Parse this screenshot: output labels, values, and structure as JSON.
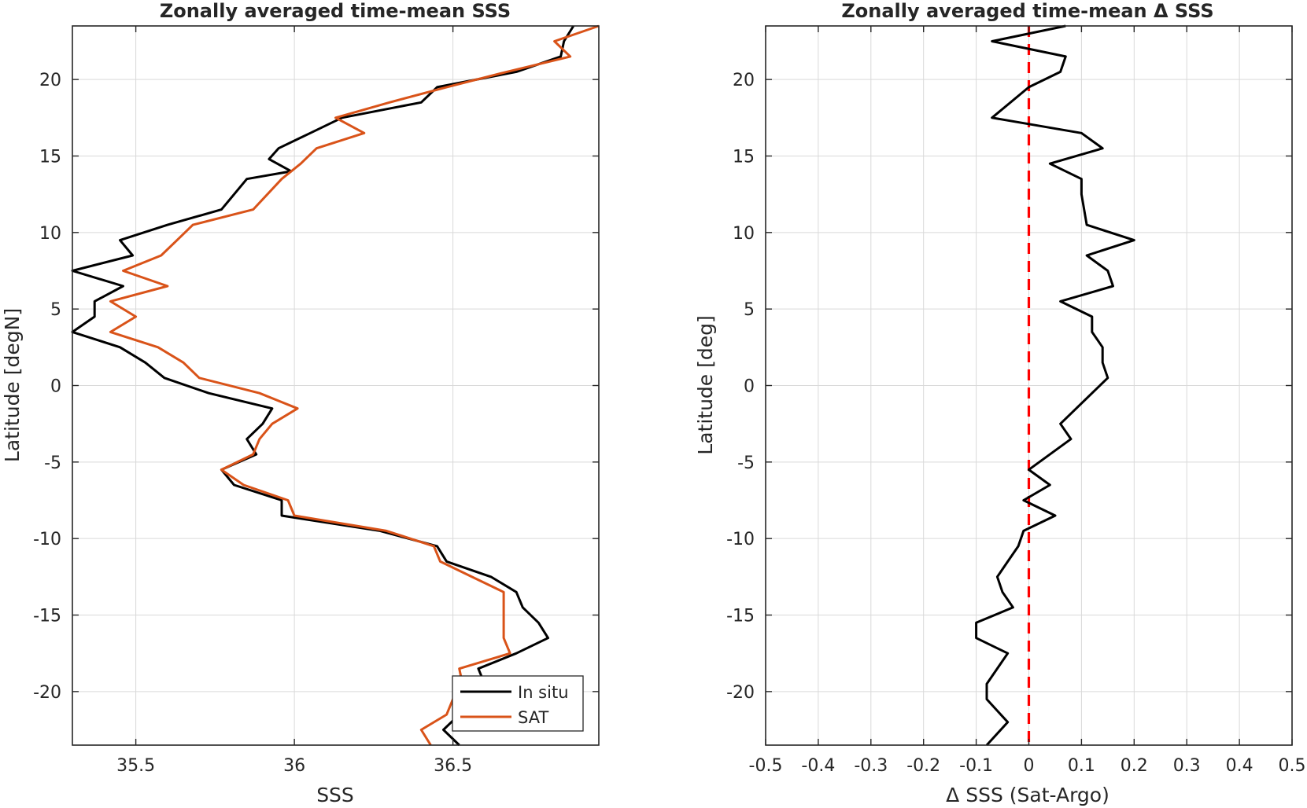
{
  "chart_data": [
    {
      "type": "line",
      "title": "Zonally averaged time-mean SSS",
      "xlabel": "SSS",
      "ylabel": "Latitude [degN]",
      "xlim": [
        35.3,
        36.96
      ],
      "ylim": [
        -23.5,
        23.5
      ],
      "xticks": [
        35.5,
        36,
        36.5
      ],
      "xtick_labels": [
        "35.5",
        "36",
        "36.5"
      ],
      "yticks": [
        20,
        15,
        10,
        5,
        0,
        -5,
        -10,
        -15,
        -20
      ],
      "ytick_labels": [
        "20",
        "15",
        "10",
        "5",
        "0",
        "-5",
        "-10",
        "-15",
        "-20"
      ],
      "grid": true,
      "legend_position": "bottom-right",
      "series": [
        {
          "name": "In situ",
          "color": "#000000",
          "points": [
            [
              36.88,
              23.5
            ],
            [
              36.85,
              22.5
            ],
            [
              36.84,
              21.5
            ],
            [
              36.7,
              20.5
            ],
            [
              36.45,
              19.5
            ],
            [
              36.4,
              18.5
            ],
            [
              36.15,
              17.5
            ],
            [
              36.05,
              16.5
            ],
            [
              35.95,
              15.5
            ],
            [
              35.92,
              14.8
            ],
            [
              35.99,
              14.0
            ],
            [
              35.85,
              13.5
            ],
            [
              35.77,
              11.5
            ],
            [
              35.6,
              10.5
            ],
            [
              35.45,
              9.5
            ],
            [
              35.49,
              8.5
            ],
            [
              35.3,
              7.5
            ],
            [
              35.46,
              6.5
            ],
            [
              35.37,
              5.5
            ],
            [
              35.37,
              4.5
            ],
            [
              35.3,
              3.5
            ],
            [
              35.45,
              2.5
            ],
            [
              35.53,
              1.5
            ],
            [
              35.59,
              0.5
            ],
            [
              35.73,
              -0.5
            ],
            [
              35.93,
              -1.5
            ],
            [
              35.9,
              -2.5
            ],
            [
              35.85,
              -3.5
            ],
            [
              35.88,
              -4.5
            ],
            [
              35.77,
              -5.5
            ],
            [
              35.81,
              -6.5
            ],
            [
              35.96,
              -7.5
            ],
            [
              35.96,
              -8.5
            ],
            [
              36.27,
              -9.5
            ],
            [
              36.45,
              -10.5
            ],
            [
              36.48,
              -11.5
            ],
            [
              36.62,
              -12.5
            ],
            [
              36.7,
              -13.5
            ],
            [
              36.72,
              -14.5
            ],
            [
              36.77,
              -15.5
            ],
            [
              36.8,
              -16.5
            ],
            [
              36.7,
              -17.5
            ],
            [
              36.58,
              -18.5
            ],
            [
              36.6,
              -19.5
            ],
            [
              36.58,
              -20.5
            ],
            [
              36.52,
              -21.5
            ],
            [
              36.47,
              -22.5
            ],
            [
              36.52,
              -23.5
            ]
          ]
        },
        {
          "name": "SAT",
          "color": "#D95319",
          "points": [
            [
              36.96,
              23.5
            ],
            [
              36.82,
              22.5
            ],
            [
              36.87,
              21.5
            ],
            [
              36.67,
              20.5
            ],
            [
              36.48,
              19.5
            ],
            [
              36.3,
              18.5
            ],
            [
              36.13,
              17.5
            ],
            [
              36.22,
              16.5
            ],
            [
              36.07,
              15.5
            ],
            [
              36.02,
              14.5
            ],
            [
              35.96,
              13.5
            ],
            [
              35.87,
              11.5
            ],
            [
              35.68,
              10.5
            ],
            [
              35.63,
              9.5
            ],
            [
              35.58,
              8.5
            ],
            [
              35.46,
              7.5
            ],
            [
              35.6,
              6.5
            ],
            [
              35.42,
              5.5
            ],
            [
              35.5,
              4.5
            ],
            [
              35.42,
              3.5
            ],
            [
              35.57,
              2.5
            ],
            [
              35.65,
              1.5
            ],
            [
              35.7,
              0.5
            ],
            [
              35.89,
              -0.5
            ],
            [
              36.01,
              -1.5
            ],
            [
              35.93,
              -2.5
            ],
            [
              35.89,
              -3.5
            ],
            [
              35.87,
              -4.5
            ],
            [
              35.77,
              -5.5
            ],
            [
              35.84,
              -6.5
            ],
            [
              35.98,
              -7.5
            ],
            [
              36.0,
              -8.5
            ],
            [
              36.29,
              -9.5
            ],
            [
              36.44,
              -10.5
            ],
            [
              36.46,
              -11.5
            ],
            [
              36.56,
              -12.5
            ],
            [
              36.66,
              -13.5
            ],
            [
              36.66,
              -14.5
            ],
            [
              36.66,
              -15.5
            ],
            [
              36.66,
              -16.5
            ],
            [
              36.68,
              -17.5
            ],
            [
              36.52,
              -18.5
            ],
            [
              36.53,
              -19.5
            ],
            [
              36.5,
              -20.5
            ],
            [
              36.48,
              -21.5
            ],
            [
              36.4,
              -22.5
            ],
            [
              36.43,
              -23.5
            ]
          ]
        }
      ]
    },
    {
      "type": "line",
      "title": "Zonally averaged time-mean Δ SSS",
      "xlabel": "Δ SSS (Sat-Argo)",
      "ylabel": "Latitude [deg]",
      "xlim": [
        -0.5,
        0.5
      ],
      "ylim": [
        -23.5,
        23.5
      ],
      "xticks": [
        -0.5,
        -0.4,
        -0.3,
        -0.2,
        -0.1,
        0,
        0.1,
        0.2,
        0.3,
        0.4,
        0.5
      ],
      "xtick_labels": [
        "-0.5",
        "-0.4",
        "-0.3",
        "-0.2",
        "-0.1",
        "0",
        "0.1",
        "0.2",
        "0.3",
        "0.4",
        "0.5"
      ],
      "yticks": [
        20,
        15,
        10,
        5,
        0,
        -5,
        -10,
        -15,
        -20
      ],
      "ytick_labels": [
        "20",
        "15",
        "10",
        "5",
        "0",
        "-5",
        "-10",
        "-15",
        "-20"
      ],
      "grid": true,
      "reference_line": {
        "x": 0,
        "color": "#FF0000",
        "style": "dashed"
      },
      "series": [
        {
          "color": "#000000",
          "points": [
            [
              0.07,
              23.5
            ],
            [
              -0.07,
              22.5
            ],
            [
              0.07,
              21.5
            ],
            [
              0.06,
              20.5
            ],
            [
              0.0,
              19.5
            ],
            [
              -0.07,
              17.5
            ],
            [
              0.1,
              16.5
            ],
            [
              0.14,
              15.5
            ],
            [
              0.04,
              14.5
            ],
            [
              0.1,
              13.5
            ],
            [
              0.1,
              12.5
            ],
            [
              0.11,
              10.5
            ],
            [
              0.2,
              9.5
            ],
            [
              0.11,
              8.5
            ],
            [
              0.15,
              7.5
            ],
            [
              0.16,
              6.5
            ],
            [
              0.06,
              5.5
            ],
            [
              0.12,
              4.5
            ],
            [
              0.12,
              3.5
            ],
            [
              0.14,
              2.5
            ],
            [
              0.14,
              1.5
            ],
            [
              0.15,
              0.5
            ],
            [
              0.12,
              -0.5
            ],
            [
              0.09,
              -1.5
            ],
            [
              0.06,
              -2.5
            ],
            [
              0.08,
              -3.5
            ],
            [
              0.0,
              -5.5
            ],
            [
              0.04,
              -6.5
            ],
            [
              -0.01,
              -7.5
            ],
            [
              0.05,
              -8.5
            ],
            [
              -0.01,
              -9.5
            ],
            [
              -0.02,
              -10.5
            ],
            [
              -0.04,
              -11.5
            ],
            [
              -0.06,
              -12.5
            ],
            [
              -0.05,
              -13.5
            ],
            [
              -0.03,
              -14.5
            ],
            [
              -0.1,
              -15.5
            ],
            [
              -0.1,
              -16.5
            ],
            [
              -0.04,
              -17.5
            ],
            [
              -0.08,
              -19.5
            ],
            [
              -0.08,
              -20.5
            ],
            [
              -0.04,
              -22.0
            ],
            [
              -0.08,
              -23.5
            ]
          ]
        }
      ]
    }
  ]
}
